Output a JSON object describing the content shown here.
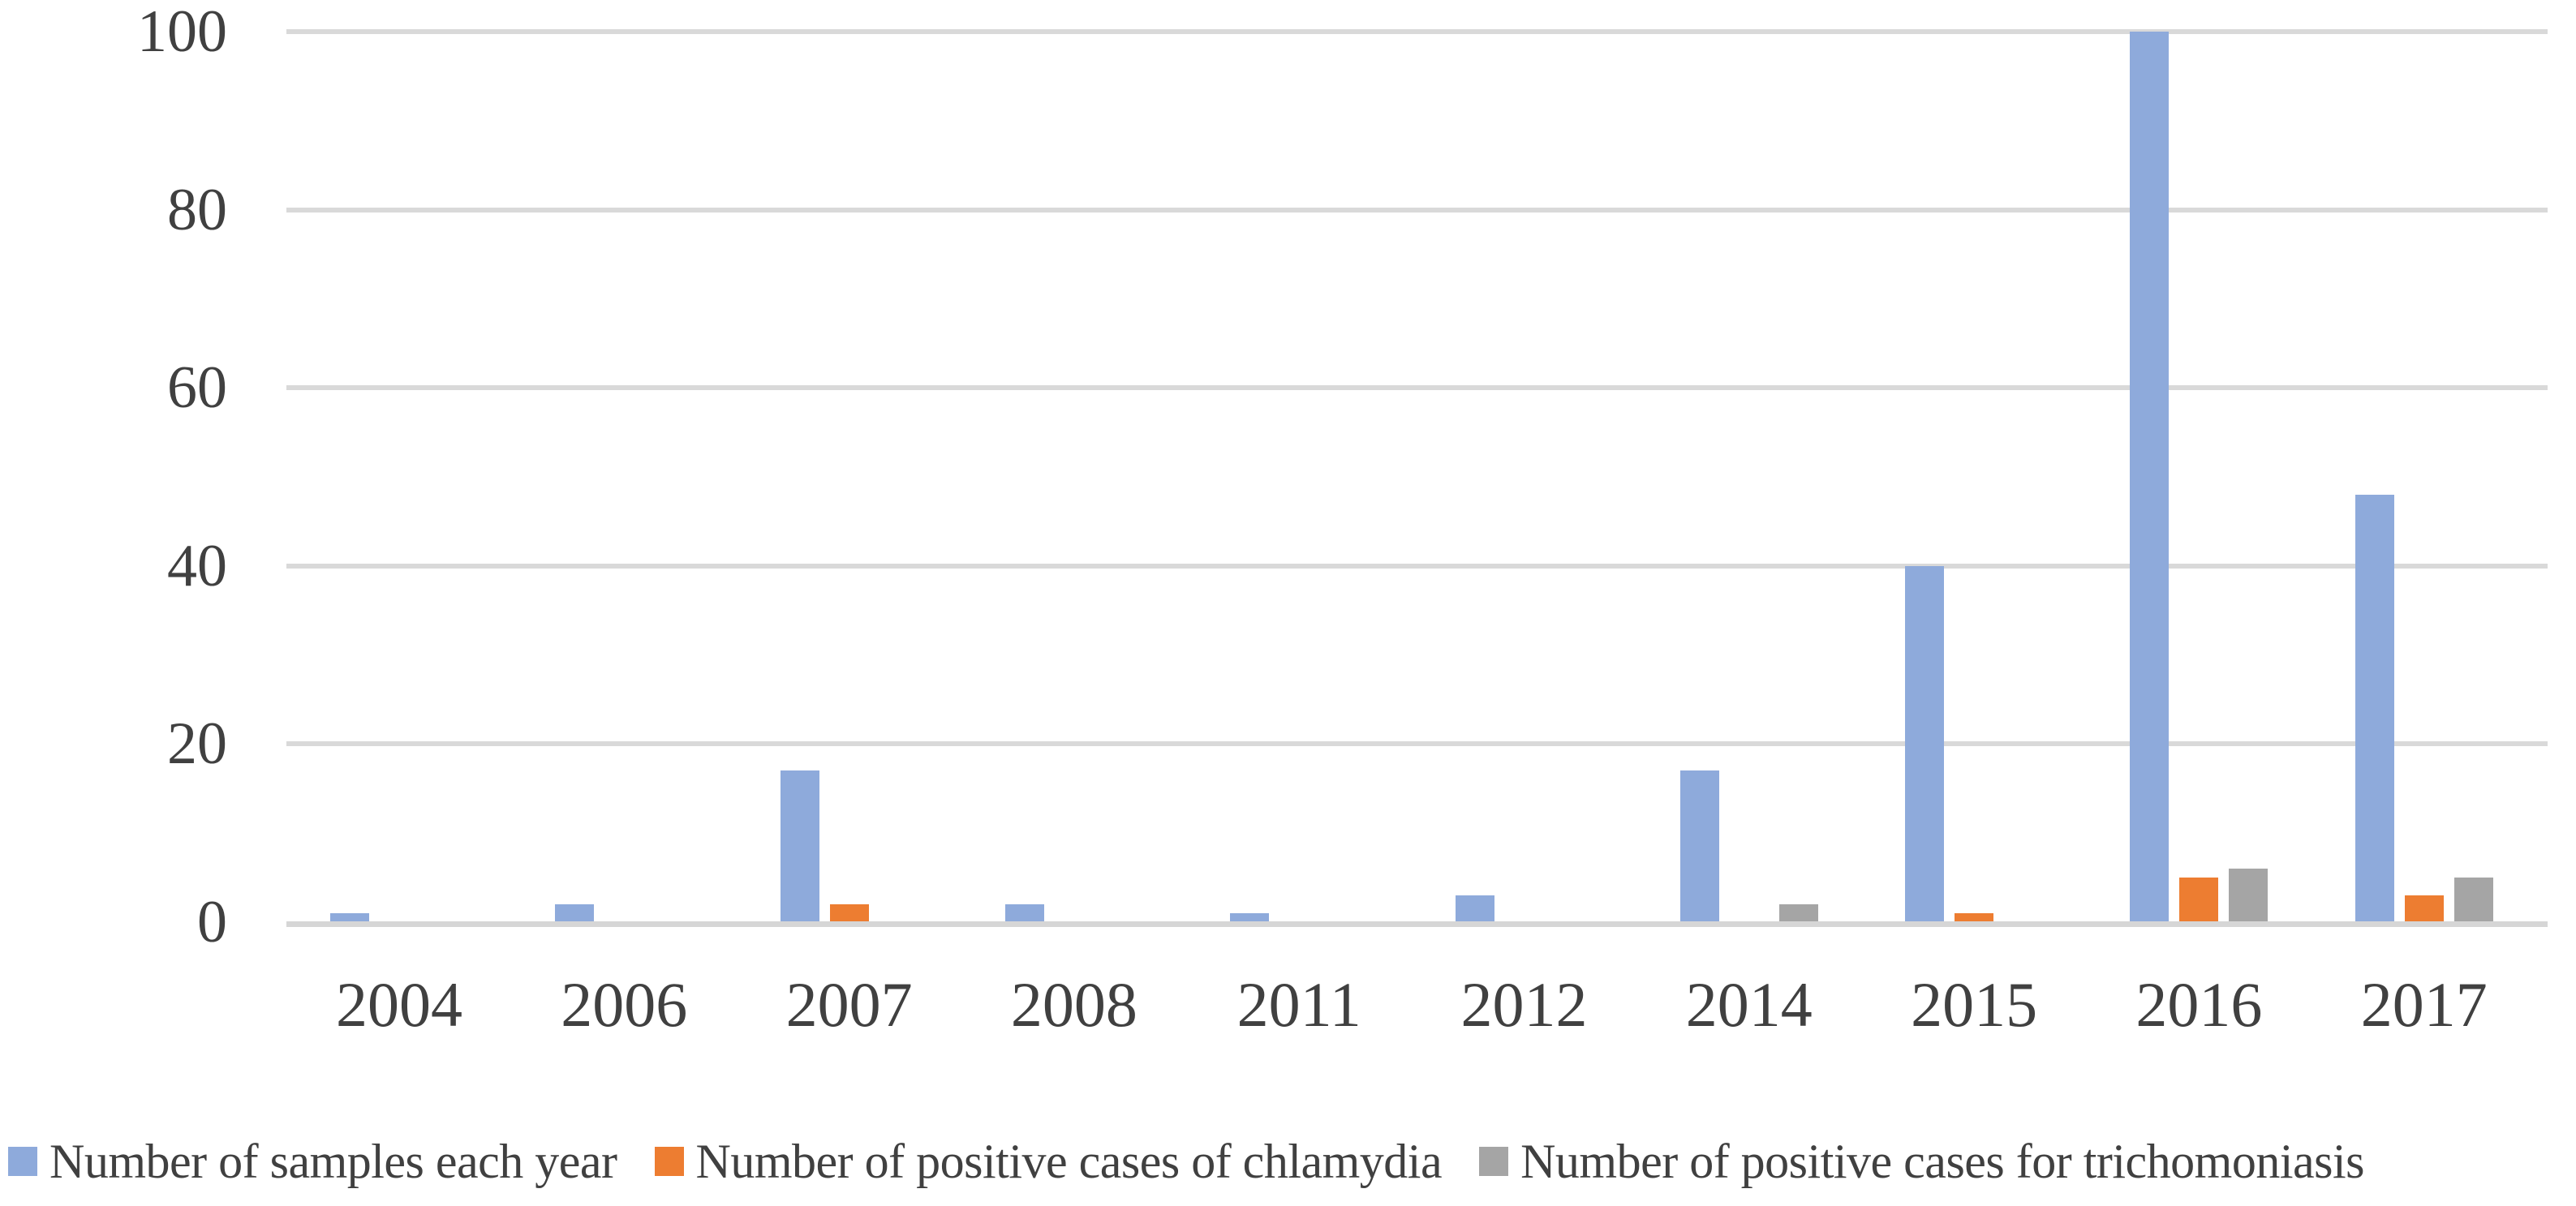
{
  "chart_data": {
    "type": "bar",
    "categories": [
      "2004",
      "2006",
      "2007",
      "2008",
      "2011",
      "2012",
      "2014",
      "2015",
      "2016",
      "2017"
    ],
    "series": [
      {
        "key": "samples",
        "name": "Number of samples each year",
        "color": "#8EAADB",
        "values": [
          1,
          2,
          17,
          2,
          1,
          3,
          17,
          40,
          100,
          48
        ]
      },
      {
        "key": "chlamydia",
        "name": "Number of positive cases of chlamydia",
        "color": "#ED7D31",
        "values": [
          0,
          0,
          2,
          0,
          0,
          0,
          0,
          1,
          5,
          3
        ]
      },
      {
        "key": "trichomoniasis",
        "name": "Number of positive cases for trichomoniasis",
        "color": "#A5A5A5",
        "values": [
          0,
          0,
          0,
          0,
          0,
          0,
          2,
          0,
          6,
          5
        ]
      }
    ],
    "title": "",
    "xlabel": "",
    "ylabel": "",
    "ylim": [
      0,
      100
    ],
    "yticks": [
      0,
      20,
      40,
      60,
      80,
      100
    ],
    "grid": true,
    "legend_position": "bottom"
  },
  "colors": {
    "grid": "#D9D9D9",
    "axis": "#D6D6D6",
    "text": "#404040",
    "background": "#FFFFFF"
  }
}
